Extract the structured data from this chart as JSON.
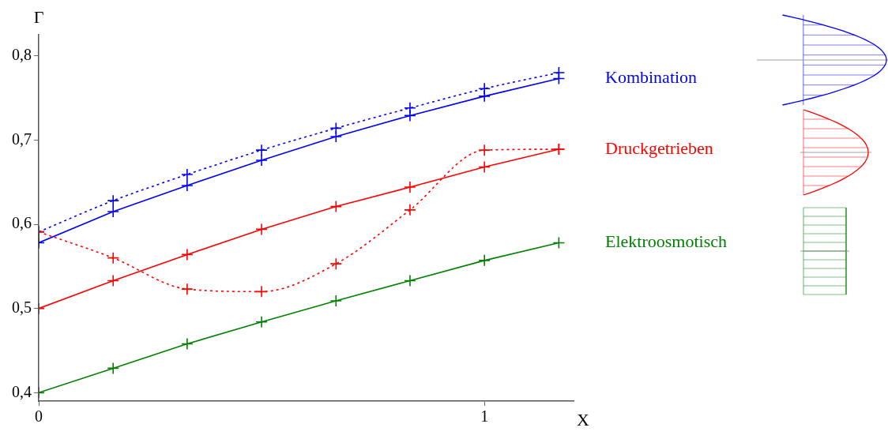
{
  "chart_data": {
    "type": "line",
    "xlabel": "X",
    "ylabel": "Γ",
    "x": [
      0,
      0.167,
      0.333,
      0.5,
      0.667,
      0.833,
      1,
      1.167
    ],
    "xlim": [
      0,
      1.2
    ],
    "xticks": [
      0,
      1
    ],
    "ylim": [
      0.39,
      0.825
    ],
    "yticks": [
      {
        "value": 0.4,
        "label": "0,4"
      },
      {
        "value": 0.5,
        "label": "0,5"
      },
      {
        "value": 0.6,
        "label": "0,6"
      },
      {
        "value": 0.7,
        "label": "0,7"
      },
      {
        "value": 0.8,
        "label": "0,8"
      }
    ],
    "grid": false,
    "legend": false,
    "marker": "cross",
    "series": [
      {
        "name": "Kombination",
        "color": "#0000ff",
        "line_style": "solid",
        "values": [
          0.578,
          0.615,
          0.646,
          0.676,
          0.704,
          0.729,
          0.752,
          0.773
        ]
      },
      {
        "color": "#0000ff",
        "line_style": "dotted",
        "values": [
          0.591,
          0.628,
          0.659,
          0.688,
          0.714,
          0.738,
          0.761,
          0.78
        ]
      },
      {
        "name": "Druckgetrieben",
        "color": "#ff0000",
        "line_style": "solid",
        "values": [
          0.5,
          0.533,
          0.564,
          0.594,
          0.621,
          0.644,
          0.668,
          0.689
        ]
      },
      {
        "color": "#ff0000",
        "line_style": "dotted",
        "values": [
          0.591,
          0.56,
          0.523,
          0.52,
          0.553,
          0.617,
          0.688,
          0.689
        ]
      },
      {
        "name": "Elektroosmotisch",
        "color": "#008000",
        "line_style": "solid",
        "values": [
          0.4,
          0.429,
          0.458,
          0.484,
          0.509,
          0.533,
          0.557,
          0.578
        ]
      }
    ]
  }
}
